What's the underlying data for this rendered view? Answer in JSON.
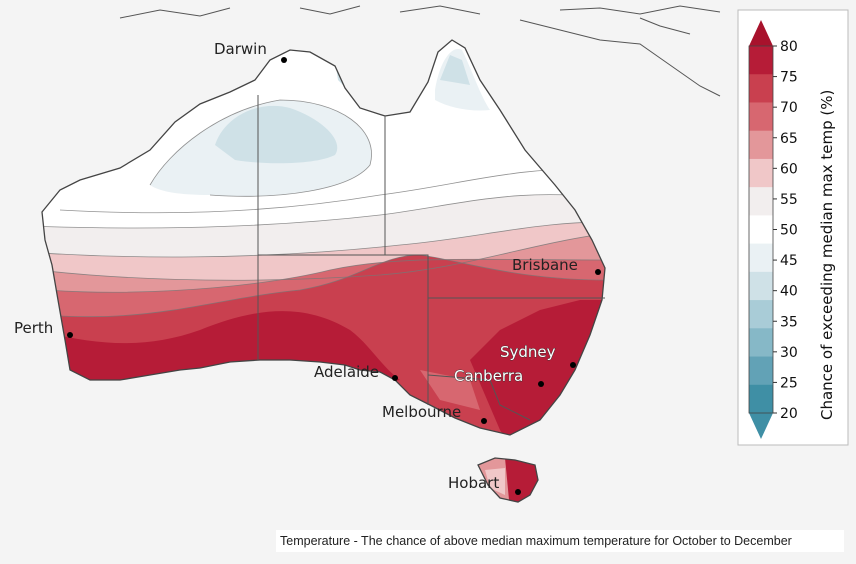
{
  "map": {
    "caption": "Temperature - The chance of above median maximum temperature for October to December",
    "cities": [
      {
        "id": "darwin",
        "name": "Darwin"
      },
      {
        "id": "brisbane",
        "name": "Brisbane"
      },
      {
        "id": "perth",
        "name": "Perth"
      },
      {
        "id": "sydney",
        "name": "Sydney"
      },
      {
        "id": "adelaide",
        "name": "Adelaide"
      },
      {
        "id": "canberra",
        "name": "Canberra"
      },
      {
        "id": "melbourne",
        "name": "Melbourne"
      },
      {
        "id": "hobart",
        "name": "Hobart"
      }
    ]
  },
  "legend": {
    "title": "Chance of exceeding median max temp (%)",
    "ticks": [
      "80",
      "75",
      "70",
      "65",
      "60",
      "55",
      "50",
      "45",
      "40",
      "35",
      "30",
      "25",
      "20"
    ],
    "colors": [
      "#b61c37",
      "#c9404f",
      "#d76770",
      "#e3979a",
      "#f0c7c8",
      "#f2eeee",
      "#ffffff",
      "#eaf1f4",
      "#cfe1e7",
      "#a9ccd7",
      "#86b8c7",
      "#62a2b6",
      "#3f8fa5"
    ],
    "top_arrow_color": "#a8122c",
    "bottom_arrow_color": "#3f8fa5"
  }
}
